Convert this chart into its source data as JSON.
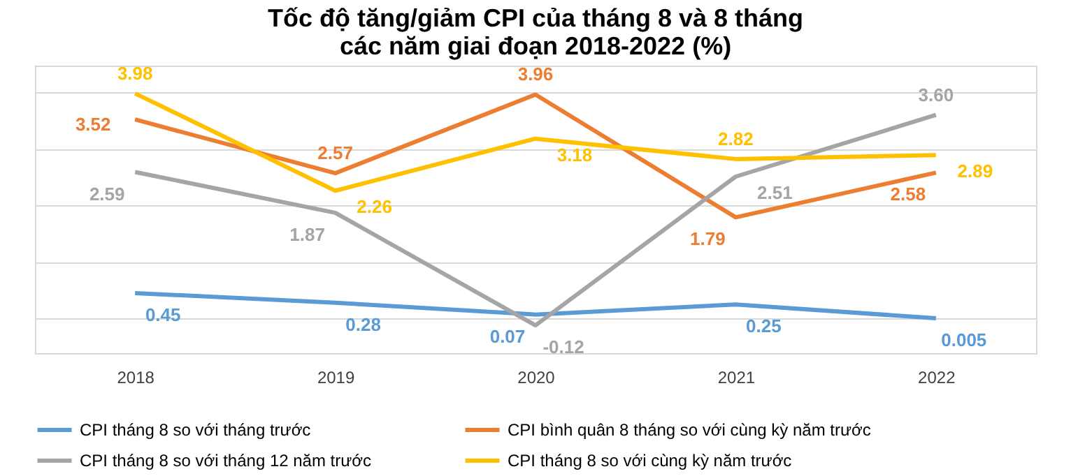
{
  "chart_data": {
    "type": "line",
    "title": [
      "Tốc độ tăng/giảm CPI của tháng 8 và 8 tháng",
      "các năm giai đoạn 2018-2022 (%)"
    ],
    "categories": [
      "2018",
      "2019",
      "2020",
      "2021",
      "2022"
    ],
    "series": [
      {
        "name": "CPI tháng 8 so với tháng trước",
        "color": "#5b9bd5",
        "values": [
          0.45,
          0.28,
          0.07,
          0.25,
          0.005
        ],
        "value_labels": [
          "0.45",
          "0.28",
          "0.07",
          "0.25",
          "0.005"
        ]
      },
      {
        "name": "CPI bình quân 8 tháng so với cùng kỳ năm trước",
        "color": "#ed7d31",
        "values": [
          3.52,
          2.57,
          3.96,
          1.79,
          2.58
        ],
        "value_labels": [
          "3.52",
          "2.57",
          "3.96",
          "1.79",
          "2.58"
        ]
      },
      {
        "name": "CPI tháng 8 so với tháng 12 năm trước",
        "color": "#a5a5a5",
        "values": [
          2.59,
          1.87,
          -0.12,
          2.51,
          3.6
        ],
        "value_labels": [
          "2.59",
          "1.87",
          "-0.12",
          "2.51",
          "3.60"
        ]
      },
      {
        "name": "CPI tháng 8 so với cùng kỳ năm trước",
        "color": "#ffc000",
        "values": [
          3.98,
          2.26,
          3.18,
          2.82,
          2.89
        ],
        "value_labels": [
          "3.98",
          "2.26",
          "3.18",
          "2.82",
          "2.89"
        ]
      }
    ],
    "grid": "y",
    "legend": "bottom",
    "tick_labels": "x",
    "line_style": "solid",
    "marker": "none"
  }
}
